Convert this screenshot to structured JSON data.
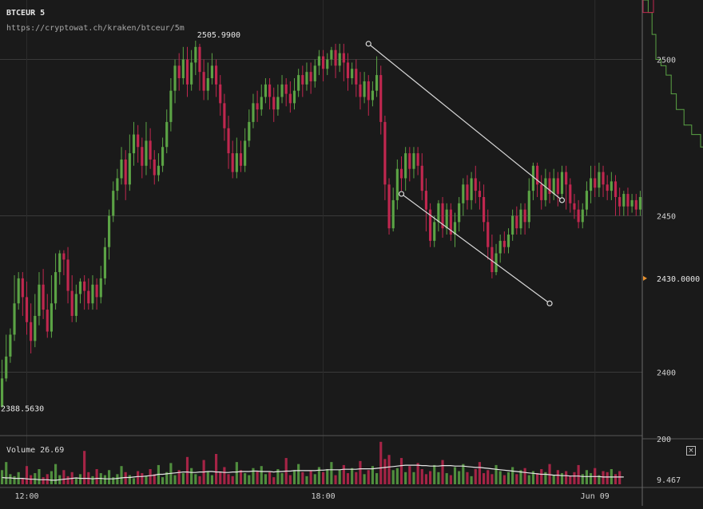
{
  "header": {
    "symbol": "BTCEUR 5",
    "source": "https://cryptowat.ch/kraken/btceur/5m"
  },
  "volume_panel": {
    "label": "Volume 26.69",
    "close_symbol": "×"
  },
  "colors": {
    "background": "#1a1a1a",
    "up": "#5ba345",
    "down": "#c0274f",
    "gridline": "#3a3a3a",
    "drawing": "#d8d8d8",
    "price_marker": "#e8912e",
    "volume_line": "#e6e6e6"
  },
  "chart_data": [
    {
      "type": "candlestick",
      "ylim": [
        2381,
        2519
      ],
      "ylabels": [
        "2500",
        "2450",
        "2400"
      ],
      "ytick_values": [
        2500,
        2450,
        2400
      ],
      "xlabels": [
        "12:00",
        "18:00",
        "Jun 09"
      ],
      "xlabel_positions": [
        6,
        78,
        144
      ],
      "high_label": "2505.9900",
      "low_label": "2388.5630",
      "current_price_label": "2430.0000",
      "current_price": 2430,
      "high_value": 2505.99,
      "low_value": 2388.563,
      "candles": [
        [
          2389,
          2398,
          2388.6,
          2404
        ],
        [
          2398,
          2405,
          2397,
          2412
        ],
        [
          2405,
          2412,
          2403,
          2414
        ],
        [
          2412,
          2422,
          2410,
          2431
        ],
        [
          2422,
          2430,
          2420,
          2432
        ],
        [
          2430,
          2424,
          2418,
          2432
        ],
        [
          2424,
          2416,
          2412,
          2429
        ],
        [
          2416,
          2410,
          2406,
          2422
        ],
        [
          2410,
          2418,
          2408,
          2425
        ],
        [
          2418,
          2428,
          2415,
          2432
        ],
        [
          2428,
          2420,
          2417,
          2433
        ],
        [
          2420,
          2413,
          2411,
          2425
        ],
        [
          2413,
          2422,
          2411,
          2431
        ],
        [
          2422,
          2432,
          2420,
          2438
        ],
        [
          2432,
          2438,
          2428,
          2439
        ],
        [
          2438,
          2436,
          2431,
          2439
        ],
        [
          2436,
          2426,
          2422,
          2440
        ],
        [
          2426,
          2418,
          2416,
          2431
        ],
        [
          2418,
          2425,
          2416,
          2428
        ],
        [
          2425,
          2429,
          2422,
          2430
        ],
        [
          2429,
          2426,
          2420,
          2431
        ],
        [
          2426,
          2422,
          2420,
          2430
        ],
        [
          2422,
          2428,
          2420,
          2431
        ],
        [
          2428,
          2424,
          2420,
          2430
        ],
        [
          2424,
          2430,
          2422,
          2434
        ],
        [
          2430,
          2440,
          2428,
          2443
        ],
        [
          2440,
          2450,
          2436,
          2452
        ],
        [
          2450,
          2458,
          2448,
          2461
        ],
        [
          2458,
          2462,
          2455,
          2465
        ],
        [
          2462,
          2468,
          2460,
          2472
        ],
        [
          2468,
          2460,
          2455,
          2471
        ],
        [
          2460,
          2470,
          2458,
          2476
        ],
        [
          2470,
          2476,
          2466,
          2480
        ],
        [
          2476,
          2472,
          2467,
          2479
        ],
        [
          2472,
          2466,
          2462,
          2475
        ],
        [
          2466,
          2474,
          2463,
          2480
        ],
        [
          2474,
          2468,
          2465,
          2478
        ],
        [
          2468,
          2463,
          2460,
          2471
        ],
        [
          2463,
          2466,
          2461,
          2470
        ],
        [
          2466,
          2472,
          2464,
          2475
        ],
        [
          2472,
          2480,
          2470,
          2484
        ],
        [
          2480,
          2490,
          2477,
          2494
        ],
        [
          2490,
          2498,
          2486,
          2500
        ],
        [
          2498,
          2494,
          2490,
          2502
        ],
        [
          2494,
          2500,
          2492,
          2504
        ],
        [
          2500,
          2492,
          2488,
          2504
        ],
        [
          2492,
          2499,
          2490,
          2503
        ],
        [
          2499,
          2504,
          2495,
          2505.99
        ],
        [
          2504,
          2496,
          2490,
          2505
        ],
        [
          2496,
          2490,
          2487,
          2500
        ],
        [
          2490,
          2494,
          2487,
          2499
        ],
        [
          2494,
          2498,
          2492,
          2502
        ],
        [
          2498,
          2492,
          2488,
          2500
        ],
        [
          2492,
          2486,
          2482,
          2495
        ],
        [
          2486,
          2478,
          2474,
          2489
        ],
        [
          2478,
          2470,
          2465,
          2482
        ],
        [
          2470,
          2464,
          2462,
          2474
        ],
        [
          2464,
          2470,
          2462,
          2475
        ],
        [
          2470,
          2466,
          2464,
          2474
        ],
        [
          2466,
          2474,
          2464,
          2478
        ],
        [
          2474,
          2480,
          2472,
          2484
        ],
        [
          2480,
          2486,
          2478,
          2489
        ],
        [
          2486,
          2484,
          2480,
          2490
        ],
        [
          2484,
          2488,
          2482,
          2492
        ],
        [
          2488,
          2492,
          2486,
          2494
        ],
        [
          2492,
          2488,
          2484,
          2494
        ],
        [
          2488,
          2484,
          2480,
          2491
        ],
        [
          2484,
          2488,
          2482,
          2492
        ],
        [
          2488,
          2492,
          2486,
          2495
        ],
        [
          2492,
          2489,
          2485,
          2494
        ],
        [
          2489,
          2486,
          2483,
          2493
        ],
        [
          2486,
          2490,
          2484,
          2494
        ],
        [
          2490,
          2495,
          2488,
          2497
        ],
        [
          2495,
          2492,
          2488,
          2498
        ],
        [
          2492,
          2496,
          2490,
          2499
        ],
        [
          2496,
          2493,
          2489,
          2499
        ],
        [
          2493,
          2498,
          2491,
          2500
        ],
        [
          2498,
          2501,
          2495,
          2503
        ],
        [
          2501,
          2497,
          2493,
          2503
        ],
        [
          2497,
          2500,
          2495,
          2502
        ],
        [
          2500,
          2503,
          2498,
          2504
        ],
        [
          2503,
          2498,
          2494,
          2505
        ],
        [
          2498,
          2502,
          2496,
          2505
        ],
        [
          2502,
          2499,
          2493,
          2505
        ],
        [
          2499,
          2494,
          2490,
          2502
        ],
        [
          2494,
          2497,
          2492,
          2499
        ],
        [
          2497,
          2492,
          2488,
          2500
        ],
        [
          2492,
          2488,
          2484,
          2496
        ],
        [
          2488,
          2493,
          2486,
          2496
        ],
        [
          2493,
          2487,
          2482,
          2495
        ],
        [
          2487,
          2490,
          2485,
          2493
        ],
        [
          2490,
          2495,
          2488,
          2501
        ],
        [
          2495,
          2480,
          2476,
          2498
        ],
        [
          2480,
          2460,
          2455,
          2482
        ],
        [
          2460,
          2446,
          2444,
          2462
        ],
        [
          2446,
          2455,
          2445,
          2459
        ],
        [
          2455,
          2465,
          2452,
          2468
        ],
        [
          2465,
          2462,
          2458,
          2469
        ],
        [
          2462,
          2470,
          2458,
          2472
        ],
        [
          2470,
          2465,
          2461,
          2472
        ],
        [
          2465,
          2470,
          2462,
          2472
        ],
        [
          2470,
          2466,
          2463,
          2472
        ],
        [
          2466,
          2458,
          2455,
          2470
        ],
        [
          2458,
          2452,
          2445,
          2462
        ],
        [
          2452,
          2442,
          2440,
          2454
        ],
        [
          2442,
          2448,
          2440,
          2450
        ],
        [
          2448,
          2454,
          2445,
          2455
        ],
        [
          2454,
          2446,
          2443,
          2456
        ],
        [
          2446,
          2452,
          2444,
          2454
        ],
        [
          2452,
          2444,
          2442,
          2454
        ],
        [
          2444,
          2448,
          2440,
          2451
        ],
        [
          2448,
          2454,
          2445,
          2456
        ],
        [
          2454,
          2460,
          2450,
          2462
        ],
        [
          2460,
          2455,
          2452,
          2463
        ],
        [
          2455,
          2462,
          2452,
          2464
        ],
        [
          2462,
          2458,
          2454,
          2466
        ],
        [
          2458,
          2456,
          2452,
          2461
        ],
        [
          2456,
          2448,
          2445,
          2460
        ],
        [
          2448,
          2440,
          2436,
          2452
        ],
        [
          2440,
          2432,
          2430,
          2444
        ],
        [
          2432,
          2438,
          2431,
          2441
        ],
        [
          2438,
          2442,
          2435,
          2444
        ],
        [
          2442,
          2440,
          2438,
          2445
        ],
        [
          2440,
          2444,
          2438,
          2446
        ],
        [
          2444,
          2450,
          2442,
          2452
        ],
        [
          2450,
          2446,
          2444,
          2453
        ],
        [
          2446,
          2452,
          2444,
          2454
        ],
        [
          2452,
          2448,
          2444,
          2454
        ],
        [
          2448,
          2458,
          2446,
          2462
        ],
        [
          2458,
          2466,
          2455,
          2467
        ],
        [
          2466,
          2460,
          2456,
          2467
        ],
        [
          2460,
          2455,
          2452,
          2463
        ],
        [
          2455,
          2462,
          2453,
          2465
        ],
        [
          2462,
          2457,
          2454,
          2464
        ],
        [
          2457,
          2462,
          2455,
          2465
        ],
        [
          2462,
          2457,
          2453,
          2464
        ],
        [
          2457,
          2464,
          2455,
          2466
        ],
        [
          2464,
          2460,
          2452,
          2466
        ],
        [
          2460,
          2454,
          2451,
          2462
        ],
        [
          2454,
          2452,
          2449,
          2457
        ],
        [
          2452,
          2448,
          2446,
          2455
        ],
        [
          2448,
          2452,
          2446,
          2454
        ],
        [
          2452,
          2458,
          2450,
          2461
        ],
        [
          2458,
          2462,
          2454,
          2466
        ],
        [
          2462,
          2459,
          2456,
          2466
        ],
        [
          2459,
          2464,
          2456,
          2467
        ],
        [
          2464,
          2460,
          2456,
          2466
        ],
        [
          2460,
          2458,
          2455,
          2463
        ],
        [
          2458,
          2461,
          2455,
          2464
        ],
        [
          2461,
          2456,
          2450,
          2463
        ],
        [
          2456,
          2453,
          2450,
          2459
        ],
        [
          2453,
          2457,
          2450,
          2458
        ],
        [
          2457,
          2453,
          2450,
          2459
        ],
        [
          2453,
          2455,
          2451,
          2457
        ],
        [
          2455,
          2452,
          2450,
          2457
        ],
        [
          2452,
          2456,
          2450,
          2458
        ]
      ],
      "volume": {
        "ylabels": [
          "200",
          "9.467"
        ],
        "values": [
          14,
          22,
          10,
          8,
          12,
          6,
          18,
          9,
          11,
          15,
          7,
          10,
          13,
          20,
          9,
          14,
          8,
          12,
          6,
          10,
          33,
          12,
          8,
          15,
          11,
          9,
          14,
          7,
          10,
          18,
          12,
          9,
          6,
          13,
          11,
          8,
          15,
          10,
          19,
          7,
          12,
          21,
          9,
          14,
          11,
          27,
          16,
          10,
          8,
          24,
          13,
          9,
          30,
          12,
          17,
          10,
          8,
          22,
          14,
          11,
          9,
          16,
          13,
          18,
          10,
          12,
          7,
          15,
          11,
          26,
          9,
          14,
          20,
          12,
          8,
          13,
          10,
          17,
          12,
          15,
          22,
          9,
          14,
          19,
          11,
          16,
          12,
          23,
          10,
          14,
          18,
          11,
          42,
          25,
          29,
          14,
          16,
          26,
          12,
          18,
          12,
          21,
          15,
          10,
          13,
          19,
          12,
          24,
          11,
          9,
          17,
          13,
          20,
          12,
          8,
          15,
          22,
          11,
          14,
          10,
          19,
          13,
          9,
          12,
          17,
          10,
          14,
          16,
          9,
          13,
          11,
          15,
          12,
          20,
          9,
          14,
          11,
          13,
          8,
          12,
          19,
          10,
          14,
          11,
          16,
          9,
          13,
          12,
          15,
          10,
          13
        ],
        "line": [
          0.15,
          0.14,
          0.14,
          0.13,
          0.13,
          0.13,
          0.12,
          0.11,
          0.11,
          0.1,
          0.1,
          0.1,
          0.09,
          0.09,
          0.1,
          0.11,
          0.12,
          0.13,
          0.14,
          0.13,
          0.13,
          0.13,
          0.12,
          0.13,
          0.13,
          0.12,
          0.12,
          0.12,
          0.13,
          0.14,
          0.15,
          0.15,
          0.16,
          0.17,
          0.17,
          0.18,
          0.19,
          0.2,
          0.22,
          0.22,
          0.23,
          0.24,
          0.25,
          0.26,
          0.27,
          0.27,
          0.26,
          0.26,
          0.27,
          0.27,
          0.28,
          0.28,
          0.27,
          0.27,
          0.26,
          0.26,
          0.27,
          0.27,
          0.28,
          0.28,
          0.28,
          0.29,
          0.29,
          0.28,
          0.28,
          0.28,
          0.27,
          0.28,
          0.28,
          0.29,
          0.29,
          0.3,
          0.3,
          0.3,
          0.3,
          0.3,
          0.3,
          0.31,
          0.31,
          0.32,
          0.32,
          0.32,
          0.32,
          0.33,
          0.33,
          0.33,
          0.33,
          0.34,
          0.34,
          0.34,
          0.34,
          0.35,
          0.36,
          0.37,
          0.38,
          0.39,
          0.4,
          0.41,
          0.42,
          0.42,
          0.42,
          0.42,
          0.41,
          0.41,
          0.4,
          0.4,
          0.4,
          0.41,
          0.41,
          0.41,
          0.4,
          0.4,
          0.4,
          0.39,
          0.38,
          0.37,
          0.37,
          0.36,
          0.35,
          0.34,
          0.33,
          0.32,
          0.31,
          0.3,
          0.29,
          0.28,
          0.27,
          0.26,
          0.25,
          0.24,
          0.23,
          0.22,
          0.22,
          0.21,
          0.2,
          0.2,
          0.19,
          0.19,
          0.18,
          0.18,
          0.18,
          0.17,
          0.17,
          0.17,
          0.17,
          0.17,
          0.16,
          0.16,
          0.16,
          0.16,
          0.16,
          0.16
        ]
      },
      "drawings": {
        "upper_line": [
          [
            89,
            2505
          ],
          [
            136,
            2455
          ]
        ],
        "lower_line": [
          [
            97,
            2457
          ],
          [
            133,
            2422
          ]
        ]
      },
      "right_panel": {
        "title": "",
        "steps": [
          [
            0,
            2519
          ],
          [
            4,
            2515
          ],
          [
            7,
            2508
          ],
          [
            10,
            2500
          ],
          [
            14,
            2498
          ],
          [
            18,
            2495
          ],
          [
            22,
            2489
          ],
          [
            26,
            2484
          ],
          [
            32,
            2479
          ],
          [
            38,
            2476
          ],
          [
            45,
            2472
          ]
        ]
      }
    }
  ]
}
